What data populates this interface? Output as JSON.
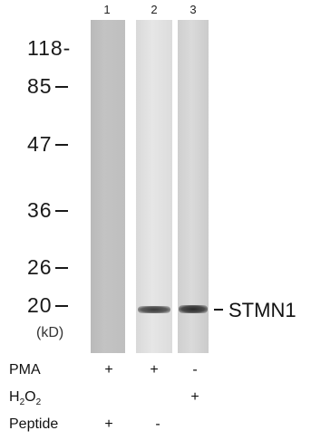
{
  "figure": {
    "lane_numbers": [
      "1",
      "2",
      "3"
    ],
    "molecular_weight_markers": [
      "118-",
      "85",
      "47",
      "36",
      "26",
      "20"
    ],
    "unit_label": "(kD)",
    "target_label": "STMN1",
    "conditions": [
      {
        "name": "PMA",
        "values": [
          "+",
          "+",
          "-"
        ]
      },
      {
        "name_main": "H",
        "name_sub1": "2",
        "name_mid": "O",
        "name_sub2": "2",
        "values": [
          "",
          "",
          "+"
        ]
      },
      {
        "name": "Peptide",
        "values": [
          "+",
          "-",
          ""
        ]
      }
    ]
  }
}
